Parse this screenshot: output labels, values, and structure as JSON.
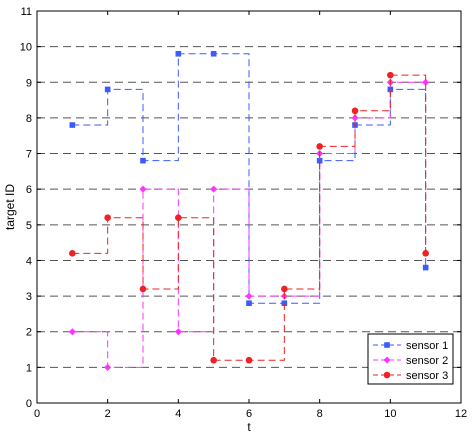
{
  "chart_data": {
    "type": "line",
    "title": "",
    "xlabel": "t",
    "ylabel": "target ID",
    "xlim": [
      0,
      12
    ],
    "ylim": [
      0,
      11
    ],
    "xticks": [
      0,
      2,
      4,
      6,
      8,
      10,
      12
    ],
    "yticks": [
      0,
      1,
      2,
      3,
      4,
      5,
      6,
      7,
      8,
      9,
      10,
      11
    ],
    "grid": "horizontal dashed",
    "legend_position": "bottom-right",
    "step_style": "dashed step",
    "series": [
      {
        "name": "sensor 1",
        "color": "#3b5bff",
        "marker": "square",
        "x": [
          1,
          2,
          3,
          4,
          5,
          6,
          7,
          8,
          9,
          10,
          11
        ],
        "y": [
          7.8,
          8.8,
          6.8,
          9.8,
          9.8,
          2.8,
          2.8,
          6.8,
          7.8,
          8.8,
          3.8
        ]
      },
      {
        "name": "sensor 2",
        "color": "#ff33ff",
        "marker": "diamond",
        "x": [
          1,
          2,
          3,
          4,
          5,
          6,
          7,
          8,
          9,
          10,
          11
        ],
        "y": [
          2,
          1,
          6,
          2,
          6,
          3,
          3,
          7,
          8,
          9,
          9
        ]
      },
      {
        "name": "sensor 3",
        "color": "#ee2222",
        "marker": "circle",
        "x": [
          1,
          2,
          3,
          4,
          5,
          6,
          7,
          8,
          9,
          10,
          11
        ],
        "y": [
          4.2,
          5.2,
          3.2,
          5.2,
          1.2,
          1.2,
          3.2,
          7.2,
          8.2,
          9.2,
          4.2
        ]
      }
    ]
  }
}
